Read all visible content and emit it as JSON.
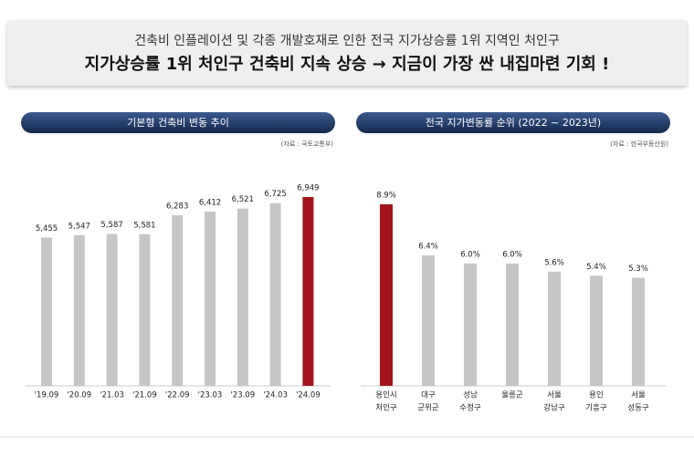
{
  "header": {
    "subtitle": "건축비 인플레이션 및 각종 개발호재로 인한 전국 지가상승률 1위 지역인 처인구",
    "title": "지가상승률 1위 처인구 건축비 지속 상승 → 지금이 가장 싼 내집마련 기회 !"
  },
  "chart_data": [
    {
      "type": "bar",
      "title": "기본형 건축비 변동 추이",
      "source": "(자료 : 국토교통부)",
      "categories": [
        "'19.09",
        "'20.09",
        "'21.03",
        "'21.09",
        "'22.09",
        "'23.03",
        "'23.09",
        "'24.03",
        "'24.09"
      ],
      "values": [
        5455,
        5547,
        5587,
        5581,
        6283,
        6412,
        6521,
        6725,
        6949
      ],
      "value_labels": [
        "5,455",
        "5,547",
        "5,587",
        "5,581",
        "6,283",
        "6,412",
        "6,521",
        "6,725",
        "6,949"
      ],
      "colors": [
        "#c6c6c6",
        "#c6c6c6",
        "#c6c6c6",
        "#c6c6c6",
        "#c6c6c6",
        "#c6c6c6",
        "#c6c6c6",
        "#c6c6c6",
        "#a3151a"
      ]
    },
    {
      "type": "bar",
      "title": "전국 지가변동률 순위 (2022 ~ 2023년)",
      "source": "(자료 : 한국부동산원)",
      "categories": [
        [
          "용인시",
          "처인구"
        ],
        [
          "대구",
          "군위군"
        ],
        [
          "성남",
          "수정구"
        ],
        [
          "울릉군"
        ],
        [
          "서울",
          "강남구"
        ],
        [
          "용인",
          "기흥구"
        ],
        [
          "서울",
          "성동구"
        ]
      ],
      "values": [
        8.9,
        6.4,
        6.0,
        6.0,
        5.6,
        5.4,
        5.3
      ],
      "value_labels": [
        "8.9%",
        "6.4%",
        "6.0%",
        "6.0%",
        "5.6%",
        "5.4%",
        "5.3%"
      ],
      "colors": [
        "#a3151a",
        "#c6c6c6",
        "#c6c6c6",
        "#c6c6c6",
        "#c6c6c6",
        "#c6c6c6",
        "#c6c6c6"
      ]
    }
  ]
}
